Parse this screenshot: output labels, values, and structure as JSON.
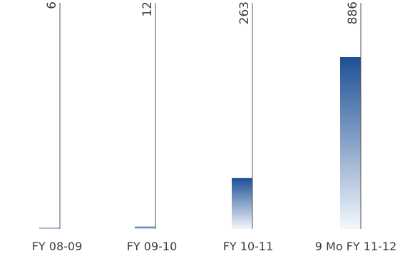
{
  "chart_data": {
    "type": "bar",
    "title": "",
    "xlabel": "",
    "ylabel": "",
    "categories": [
      "FY 08-09",
      "FY 09-10",
      "FY 10-11",
      "9 Mo FY 11-12"
    ],
    "values": [
      6,
      12,
      263,
      886
    ],
    "ylim": [
      0,
      1100
    ],
    "grid": false,
    "legend": "none",
    "colors": {
      "bar_top": "#1d4f94",
      "bar_bottom": "#f4f8fd",
      "leader_line": "#555555",
      "text": "#3a3a3a"
    }
  }
}
